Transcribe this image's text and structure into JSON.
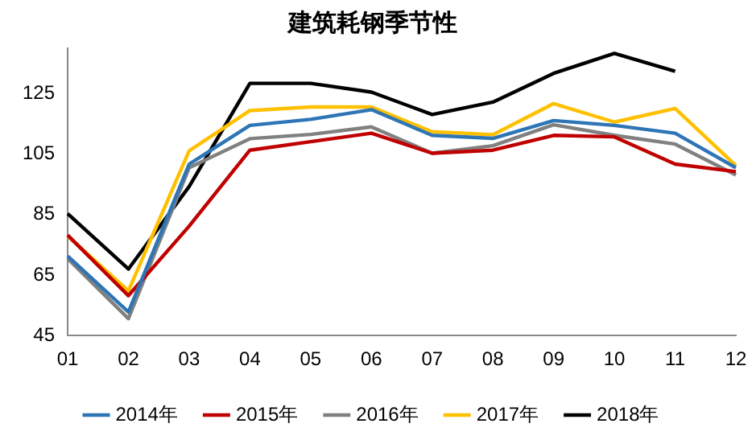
{
  "chart_data": {
    "type": "line",
    "title": "建筑耗钢季节性",
    "categories": [
      "01",
      "02",
      "03",
      "04",
      "05",
      "06",
      "07",
      "08",
      "09",
      "10",
      "11",
      "12"
    ],
    "series": [
      {
        "name": "2014年",
        "color": "#2e75b6",
        "values": [
          71.3,
          52.8,
          101.7,
          114.5,
          116.5,
          119.7,
          111.2,
          110.2,
          116.1,
          114.5,
          111.9,
          100.5
        ]
      },
      {
        "name": "2015年",
        "color": "#c00000",
        "values": [
          78.2,
          58.2,
          81.2,
          106.3,
          109.1,
          111.9,
          105.3,
          106.3,
          111.2,
          110.7,
          101.7,
          99.2
        ]
      },
      {
        "name": "2016年",
        "color": "#808080",
        "values": [
          70.5,
          50.6,
          100.5,
          110.1,
          111.5,
          114,
          105.3,
          107.8,
          114.7,
          111.2,
          108.3,
          98.1
        ]
      },
      {
        "name": "2017年",
        "color": "#ffc000",
        "values": [
          77.9,
          59.8,
          106.1,
          119.4,
          120.6,
          120.6,
          112.4,
          111.4,
          121.7,
          115.6,
          120.1,
          101.2
        ]
      },
      {
        "name": "2018年",
        "color": "#000000",
        "values": [
          85.3,
          67,
          94.3,
          128.4,
          128.4,
          125.5,
          118.1,
          122.2,
          131.7,
          138.3,
          132.4,
          null
        ]
      }
    ],
    "ylim": [
      45,
      140
    ],
    "yticks": [
      45,
      65,
      85,
      105,
      125
    ],
    "grid": false,
    "legend": "bottom",
    "marker": "none",
    "line_style": "solid"
  }
}
